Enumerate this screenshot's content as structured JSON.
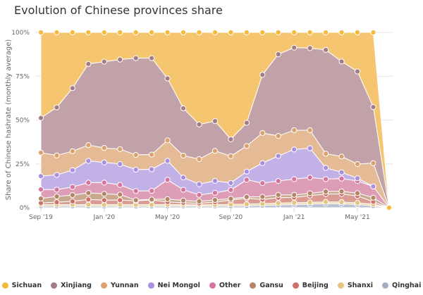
{
  "chart_data": {
    "type": "area",
    "stacked": true,
    "title": "Evolution of Chinese provinces share",
    "ylabel": "Share of Chinese hashrate (monthly average)",
    "xlabel": "",
    "ylim": [
      0,
      100
    ],
    "yticks": [
      "0%",
      "25%",
      "50%",
      "75%",
      "100%"
    ],
    "xticks": [
      "Sep '19",
      "Jan '20",
      "May '20",
      "Sep '20",
      "Jan '21",
      "May '21"
    ],
    "grid": true,
    "legend": "bottom",
    "x": [
      "2019-09",
      "2019-10",
      "2019-11",
      "2019-12",
      "2020-01",
      "2020-02",
      "2020-03",
      "2020-04",
      "2020-05",
      "2020-06",
      "2020-07",
      "2020-08",
      "2020-09",
      "2020-10",
      "2020-11",
      "2020-12",
      "2021-01",
      "2021-02",
      "2021-03",
      "2021-04",
      "2021-05",
      "2021-06",
      "2021-07"
    ],
    "series": [
      {
        "name": "Sichuan",
        "color": "#f6b93b",
        "fill": "#f5c56f",
        "values": [
          48.8,
          42.8,
          31.8,
          18.0,
          16.7,
          15.5,
          14.7,
          14.7,
          26.3,
          43.3,
          52.5,
          50.6,
          61.0,
          51.6,
          24.2,
          12.5,
          8.7,
          9.0,
          10.0,
          16.6,
          22.3,
          42.6,
          0
        ]
      },
      {
        "name": "Xinjiang",
        "color": "#a27c88",
        "fill": "#c0a2a8",
        "values": [
          19.8,
          27.4,
          36.0,
          46.3,
          49.2,
          51.1,
          55.2,
          55.0,
          35.3,
          27.0,
          19.8,
          17.0,
          9.6,
          13.2,
          33.2,
          46.6,
          47.1,
          46.8,
          59.2,
          54.2,
          52.8,
          32.0,
          0
        ]
      },
      {
        "name": "Yunnan",
        "color": "#dba26e",
        "fill": "#e4bb95",
        "values": [
          13.4,
          11.1,
          10.8,
          9.0,
          8.3,
          8.5,
          8.4,
          8.4,
          11.7,
          12.5,
          14.3,
          17.1,
          15.3,
          14.6,
          17.2,
          11.4,
          11.0,
          10.3,
          8.1,
          9.0,
          8.1,
          13.3,
          0
        ]
      },
      {
        "name": "Nei Mongol",
        "color": "#a98fe2",
        "fill": "#c2b1e6",
        "values": [
          7.6,
          8.4,
          9.6,
          12.4,
          11.5,
          11.9,
          12.2,
          12.3,
          10.8,
          7.0,
          6.1,
          6.8,
          4.0,
          4.7,
          11.4,
          14.3,
          16.9,
          16.7,
          6.4,
          3.6,
          1.6,
          0.0,
          0
        ]
      },
      {
        "name": "Other",
        "color": "#d5749c",
        "fill": "#dd9db7",
        "values": [
          5.2,
          3.9,
          4.6,
          5.9,
          6.4,
          5.5,
          5.2,
          4.9,
          11.0,
          6.1,
          3.7,
          4.1,
          5.0,
          9.8,
          7.8,
          7.9,
          9.0,
          9.0,
          7.1,
          7.3,
          6.9,
          6.4,
          0
        ]
      },
      {
        "name": "Gansu",
        "color": "#b28665",
        "fill": "#c9a88e",
        "values": [
          2.5,
          3.3,
          3.6,
          3.7,
          3.6,
          3.2,
          0.4,
          0.3,
          1.6,
          1.3,
          1.1,
          1.2,
          0.8,
          0.7,
          1.6,
          1.6,
          1.5,
          1.3,
          1.4,
          1.5,
          1.6,
          2.3,
          0
        ]
      },
      {
        "name": "Beijing",
        "color": "#cd7067",
        "fill": "#da9b93",
        "values": [
          0.9,
          1.3,
          1.8,
          2.9,
          2.6,
          2.6,
          2.2,
          2.7,
          1.5,
          1.1,
          0.9,
          1.5,
          2.4,
          3.4,
          2.3,
          3.1,
          3.0,
          3.9,
          4.5,
          4.6,
          3.9,
          1.4,
          0
        ]
      },
      {
        "name": "Shanxi",
        "color": "#e5c47e",
        "fill": "#edd5a3",
        "values": [
          0.9,
          0.9,
          0.9,
          0.9,
          0.9,
          0.9,
          0.9,
          0.9,
          0.9,
          0.8,
          0.7,
          0.8,
          1.0,
          1.0,
          1.0,
          1.1,
          1.0,
          1.0,
          1.0,
          1.0,
          1.0,
          1.0,
          0
        ]
      },
      {
        "name": "Qinghai",
        "color": "#a4afc4",
        "fill": "#bac2d1",
        "values": [
          0.9,
          0.9,
          0.9,
          0.9,
          0.8,
          0.8,
          0.8,
          0.8,
          0.9,
          0.9,
          0.9,
          0.9,
          0.9,
          1.0,
          1.3,
          1.5,
          1.8,
          2.0,
          2.3,
          2.2,
          1.8,
          1.0,
          0
        ]
      }
    ]
  }
}
